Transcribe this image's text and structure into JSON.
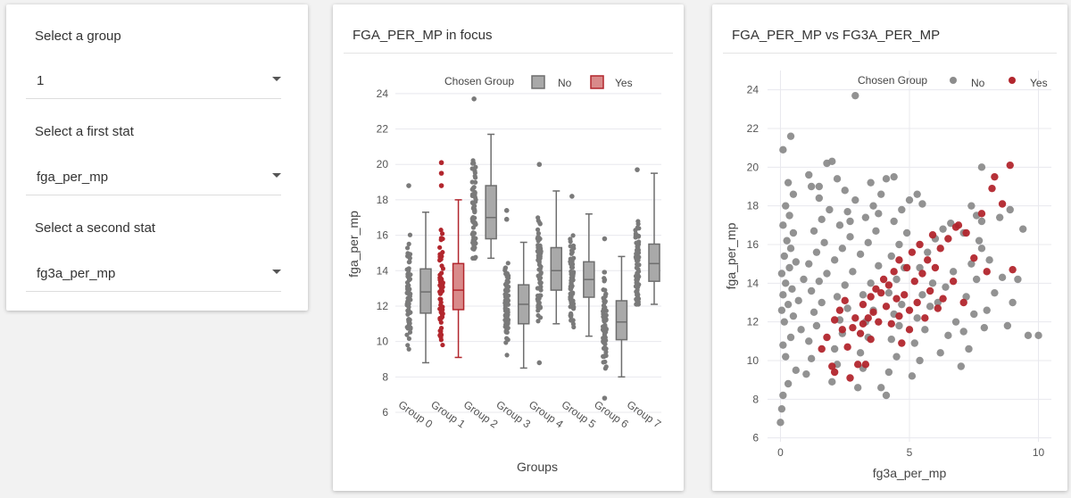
{
  "controls": {
    "group": {
      "label": "Select a group",
      "value": "1"
    },
    "first_stat": {
      "label": "Select a first stat",
      "value": "fga_per_mp"
    },
    "second_stat": {
      "label": "Select a second stat",
      "value": "fg3a_per_mp"
    }
  },
  "box_panel": {
    "title": "FGA_PER_MP in focus"
  },
  "scatter_panel": {
    "title": "FGA_PER_MP vs FG3A_PER_MP"
  },
  "colors": {
    "no": "#8c8c8c",
    "yes": "#b2262d",
    "no_fill": "#a9a9a9",
    "yes_fill": "#d98a8a"
  },
  "chart_data": [
    {
      "type": "box",
      "xlabel": "Groups",
      "ylabel": "fga_per_mp",
      "ylim": [
        6,
        25
      ],
      "yticks": [
        6,
        8,
        10,
        12,
        14,
        16,
        18,
        20,
        22,
        24
      ],
      "categories": [
        "Group 0",
        "Group 1",
        "Group 2",
        "Group 3",
        "Group 4",
        "Group 5",
        "Group 6",
        "Group 7"
      ],
      "legend": {
        "title": "Chosen Group",
        "entries": [
          "No",
          "Yes"
        ],
        "position": "top"
      },
      "boxes": [
        {
          "name": "Group 0",
          "chosen": "No",
          "min": 8.8,
          "q1": 11.6,
          "median": 12.8,
          "q3": 14.1,
          "max": 17.3,
          "outliers": [
            18.8
          ]
        },
        {
          "name": "Group 1",
          "chosen": "Yes",
          "min": 9.1,
          "q1": 11.8,
          "median": 12.9,
          "q3": 14.4,
          "max": 18.0,
          "outliers": [
            20.1,
            19.5,
            18.8
          ]
        },
        {
          "name": "Group 2",
          "chosen": "No",
          "min": 14.7,
          "q1": 15.8,
          "median": 17.0,
          "q3": 18.8,
          "max": 21.7,
          "outliers": [
            23.7
          ]
        },
        {
          "name": "Group 3",
          "chosen": "No",
          "min": 8.5,
          "q1": 11.0,
          "median": 12.1,
          "q3": 13.2,
          "max": 15.6,
          "outliers": [
            17.4,
            16.9
          ]
        },
        {
          "name": "Group 4",
          "chosen": "No",
          "min": 11.0,
          "q1": 12.9,
          "median": 14.0,
          "q3": 15.3,
          "max": 18.5,
          "outliers": [
            20.0,
            8.8
          ]
        },
        {
          "name": "Group 5",
          "chosen": "No",
          "min": 10.3,
          "q1": 12.5,
          "median": 13.5,
          "q3": 14.5,
          "max": 17.2,
          "outliers": [
            18.2
          ]
        },
        {
          "name": "Group 6",
          "chosen": "No",
          "min": 8.0,
          "q1": 10.1,
          "median": 11.1,
          "q3": 12.3,
          "max": 14.8,
          "outliers": [
            15.8,
            6.8
          ]
        },
        {
          "name": "Group 7",
          "chosen": "No",
          "min": 12.1,
          "q1": 13.4,
          "median": 14.4,
          "q3": 15.5,
          "max": 19.5,
          "outliers": [
            19.7
          ]
        }
      ]
    },
    {
      "type": "scatter",
      "xlabel": "fg3a_per_mp",
      "ylabel": "fga_per_mp",
      "xlim": [
        -0.5,
        10.5
      ],
      "ylim": [
        5.8,
        25
      ],
      "xticks": [
        0,
        5,
        10
      ],
      "yticks": [
        6,
        8,
        10,
        12,
        14,
        16,
        18,
        20,
        22,
        24
      ],
      "legend": {
        "title": "Chosen Group",
        "entries": [
          "No",
          "Yes"
        ],
        "position": "top"
      },
      "series": [
        {
          "name": "No",
          "points": [
            [
              0,
              6.8
            ],
            [
              0.05,
              7.5
            ],
            [
              0.1,
              8.2
            ],
            [
              0.3,
              8.8
            ],
            [
              0.6,
              9.5
            ],
            [
              0.2,
              10.2
            ],
            [
              0.1,
              10.8
            ],
            [
              0.4,
              11.2
            ],
            [
              0.8,
              11.6
            ],
            [
              0.15,
              12.0
            ],
            [
              0.5,
              12.3
            ],
            [
              0.05,
              12.6
            ],
            [
              0.3,
              12.9
            ],
            [
              0.7,
              13.1
            ],
            [
              0.1,
              13.4
            ],
            [
              0.45,
              13.7
            ],
            [
              0.2,
              14.0
            ],
            [
              0.9,
              14.2
            ],
            [
              0.05,
              14.5
            ],
            [
              0.35,
              14.8
            ],
            [
              0.6,
              15.1
            ],
            [
              0.15,
              15.4
            ],
            [
              0.4,
              15.8
            ],
            [
              0.25,
              16.2
            ],
            [
              0.5,
              16.6
            ],
            [
              0.1,
              17.0
            ],
            [
              0.35,
              17.5
            ],
            [
              0.2,
              18.0
            ],
            [
              0.5,
              18.6
            ],
            [
              0.3,
              19.2
            ],
            [
              0.1,
              20.9
            ],
            [
              0.4,
              21.6
            ],
            [
              1.0,
              9.3
            ],
            [
              1.2,
              10.1
            ],
            [
              1.1,
              11.0
            ],
            [
              1.4,
              11.8
            ],
            [
              1.3,
              12.5
            ],
            [
              1.6,
              13.0
            ],
            [
              1.2,
              13.6
            ],
            [
              1.5,
              14.1
            ],
            [
              1.8,
              14.5
            ],
            [
              1.1,
              15.0
            ],
            [
              1.4,
              15.6
            ],
            [
              1.7,
              16.1
            ],
            [
              1.3,
              16.7
            ],
            [
              1.6,
              17.3
            ],
            [
              1.9,
              17.8
            ],
            [
              1.5,
              18.4
            ],
            [
              1.2,
              19.0
            ],
            [
              1.1,
              19.6
            ],
            [
              1.8,
              20.2
            ],
            [
              1.5,
              19.0
            ],
            [
              2.0,
              8.9
            ],
            [
              2.2,
              9.8
            ],
            [
              2.1,
              10.6
            ],
            [
              2.4,
              11.4
            ],
            [
              2.3,
              12.1
            ],
            [
              2.6,
              12.7
            ],
            [
              2.2,
              13.3
            ],
            [
              2.5,
              13.9
            ],
            [
              2.8,
              14.6
            ],
            [
              2.1,
              15.2
            ],
            [
              2.4,
              15.8
            ],
            [
              2.7,
              16.4
            ],
            [
              2.3,
              17.0
            ],
            [
              2.6,
              17.7
            ],
            [
              2.9,
              18.3
            ],
            [
              2.5,
              18.8
            ],
            [
              2.2,
              19.4
            ],
            [
              2.0,
              20.3
            ],
            [
              2.9,
              23.7
            ],
            [
              2.7,
              17.2
            ],
            [
              3.0,
              8.6
            ],
            [
              3.2,
              9.6
            ],
            [
              3.1,
              10.4
            ],
            [
              3.4,
              11.2
            ],
            [
              3.3,
              12.0
            ],
            [
              3.6,
              12.6
            ],
            [
              3.2,
              13.4
            ],
            [
              3.5,
              14.0
            ],
            [
              3.8,
              14.9
            ],
            [
              3.1,
              15.5
            ],
            [
              3.4,
              16.1
            ],
            [
              3.7,
              16.7
            ],
            [
              3.3,
              17.4
            ],
            [
              3.6,
              18.0
            ],
            [
              3.9,
              18.6
            ],
            [
              3.5,
              19.2
            ],
            [
              3.8,
              17.6
            ],
            [
              4.1,
              19.4
            ],
            [
              4.4,
              19.5
            ],
            [
              4.1,
              8.2
            ],
            [
              3.9,
              8.6
            ],
            [
              4.2,
              9.4
            ],
            [
              4.5,
              10.2
            ],
            [
              4.3,
              11.1
            ],
            [
              4.6,
              11.8
            ],
            [
              4.4,
              12.4
            ],
            [
              4.7,
              12.9
            ],
            [
              4.2,
              13.5
            ],
            [
              4.5,
              14.2
            ],
            [
              4.8,
              14.8
            ],
            [
              4.3,
              15.4
            ],
            [
              4.6,
              16.0
            ],
            [
              4.9,
              16.6
            ],
            [
              4.4,
              17.2
            ],
            [
              4.7,
              17.8
            ],
            [
              5.0,
              18.3
            ],
            [
              5.3,
              18.6
            ],
            [
              5.5,
              18.1
            ],
            [
              5.1,
              9.2
            ],
            [
              5.4,
              10.0
            ],
            [
              5.2,
              10.9
            ],
            [
              5.6,
              11.6
            ],
            [
              5.3,
              12.2
            ],
            [
              5.8,
              12.8
            ],
            [
              5.5,
              13.4
            ],
            [
              5.9,
              14.0
            ],
            [
              5.4,
              14.8
            ],
            [
              5.7,
              15.6
            ],
            [
              6.0,
              16.3
            ],
            [
              6.3,
              16.8
            ],
            [
              6.6,
              17.1
            ],
            [
              6.2,
              10.4
            ],
            [
              6.5,
              11.3
            ],
            [
              6.8,
              12.0
            ],
            [
              6.1,
              13.0
            ],
            [
              6.4,
              13.8
            ],
            [
              6.7,
              14.6
            ],
            [
              7.0,
              9.7
            ],
            [
              7.3,
              10.6
            ],
            [
              7.1,
              11.5
            ],
            [
              7.5,
              12.4
            ],
            [
              7.2,
              13.3
            ],
            [
              7.6,
              14.2
            ],
            [
              7.4,
              15.0
            ],
            [
              7.8,
              15.8
            ],
            [
              7.1,
              16.6
            ],
            [
              7.7,
              16.2
            ],
            [
              7.4,
              18.0
            ],
            [
              8.0,
              12.6
            ],
            [
              8.3,
              13.5
            ],
            [
              8.6,
              14.3
            ],
            [
              8.1,
              15.2
            ],
            [
              7.9,
              11.7
            ],
            [
              7.6,
              17.5
            ],
            [
              7.8,
              17.2
            ],
            [
              8.5,
              17.4
            ],
            [
              8.9,
              17.8
            ],
            [
              9.0,
              13.0
            ],
            [
              9.2,
              14.2
            ],
            [
              8.8,
              11.8
            ],
            [
              9.4,
              16.8
            ],
            [
              9.6,
              11.3
            ],
            [
              10.0,
              11.3
            ],
            [
              7.8,
              20.0
            ]
          ]
        },
        {
          "name": "Yes",
          "points": [
            [
              1.6,
              10.6
            ],
            [
              1.8,
              11.2
            ],
            [
              2.0,
              9.7
            ],
            [
              2.1,
              9.4
            ],
            [
              2.1,
              12.1
            ],
            [
              2.3,
              12.6
            ],
            [
              2.4,
              11.6
            ],
            [
              2.5,
              13.1
            ],
            [
              2.6,
              10.7
            ],
            [
              2.7,
              9.1
            ],
            [
              2.8,
              11.7
            ],
            [
              2.9,
              12.2
            ],
            [
              3.0,
              9.8
            ],
            [
              3.2,
              11.9
            ],
            [
              3.2,
              12.9
            ],
            [
              3.3,
              9.8
            ],
            [
              3.4,
              12.2
            ],
            [
              3.5,
              13.3
            ],
            [
              3.5,
              11.1
            ],
            [
              3.6,
              12.5
            ],
            [
              3.7,
              13.7
            ],
            [
              3.8,
              12.0
            ],
            [
              3.9,
              13.5
            ],
            [
              4.0,
              14.2
            ],
            [
              4.1,
              12.8
            ],
            [
              4.2,
              13.9
            ],
            [
              4.3,
              11.9
            ],
            [
              4.4,
              14.6
            ],
            [
              4.5,
              13.2
            ],
            [
              4.6,
              15.2
            ],
            [
              4.6,
              12.3
            ],
            [
              4.8,
              13.4
            ],
            [
              4.9,
              14.8
            ],
            [
              5.0,
              12.6
            ],
            [
              5.1,
              15.6
            ],
            [
              5.2,
              14.1
            ],
            [
              5.3,
              13.0
            ],
            [
              5.4,
              16.0
            ],
            [
              5.5,
              14.5
            ],
            [
              5.6,
              12.2
            ],
            [
              5.7,
              15.2
            ],
            [
              5.8,
              13.6
            ],
            [
              5.9,
              16.5
            ],
            [
              6.0,
              14.8
            ],
            [
              6.1,
              12.7
            ],
            [
              6.2,
              15.8
            ],
            [
              6.3,
              13.2
            ],
            [
              6.5,
              16.3
            ],
            [
              6.7,
              14.1
            ],
            [
              6.9,
              17.0
            ],
            [
              7.2,
              16.6
            ],
            [
              7.5,
              15.3
            ],
            [
              7.8,
              17.6
            ],
            [
              8.0,
              14.6
            ],
            [
              8.2,
              18.9
            ],
            [
              8.3,
              19.5
            ],
            [
              8.6,
              18.1
            ],
            [
              8.9,
              20.1
            ],
            [
              9.0,
              14.7
            ],
            [
              6.8,
              16.9
            ],
            [
              7.1,
              13.0
            ],
            [
              5.0,
              11.6
            ],
            [
              4.7,
              10.9
            ],
            [
              3.1,
              11.4
            ]
          ]
        }
      ]
    }
  ]
}
